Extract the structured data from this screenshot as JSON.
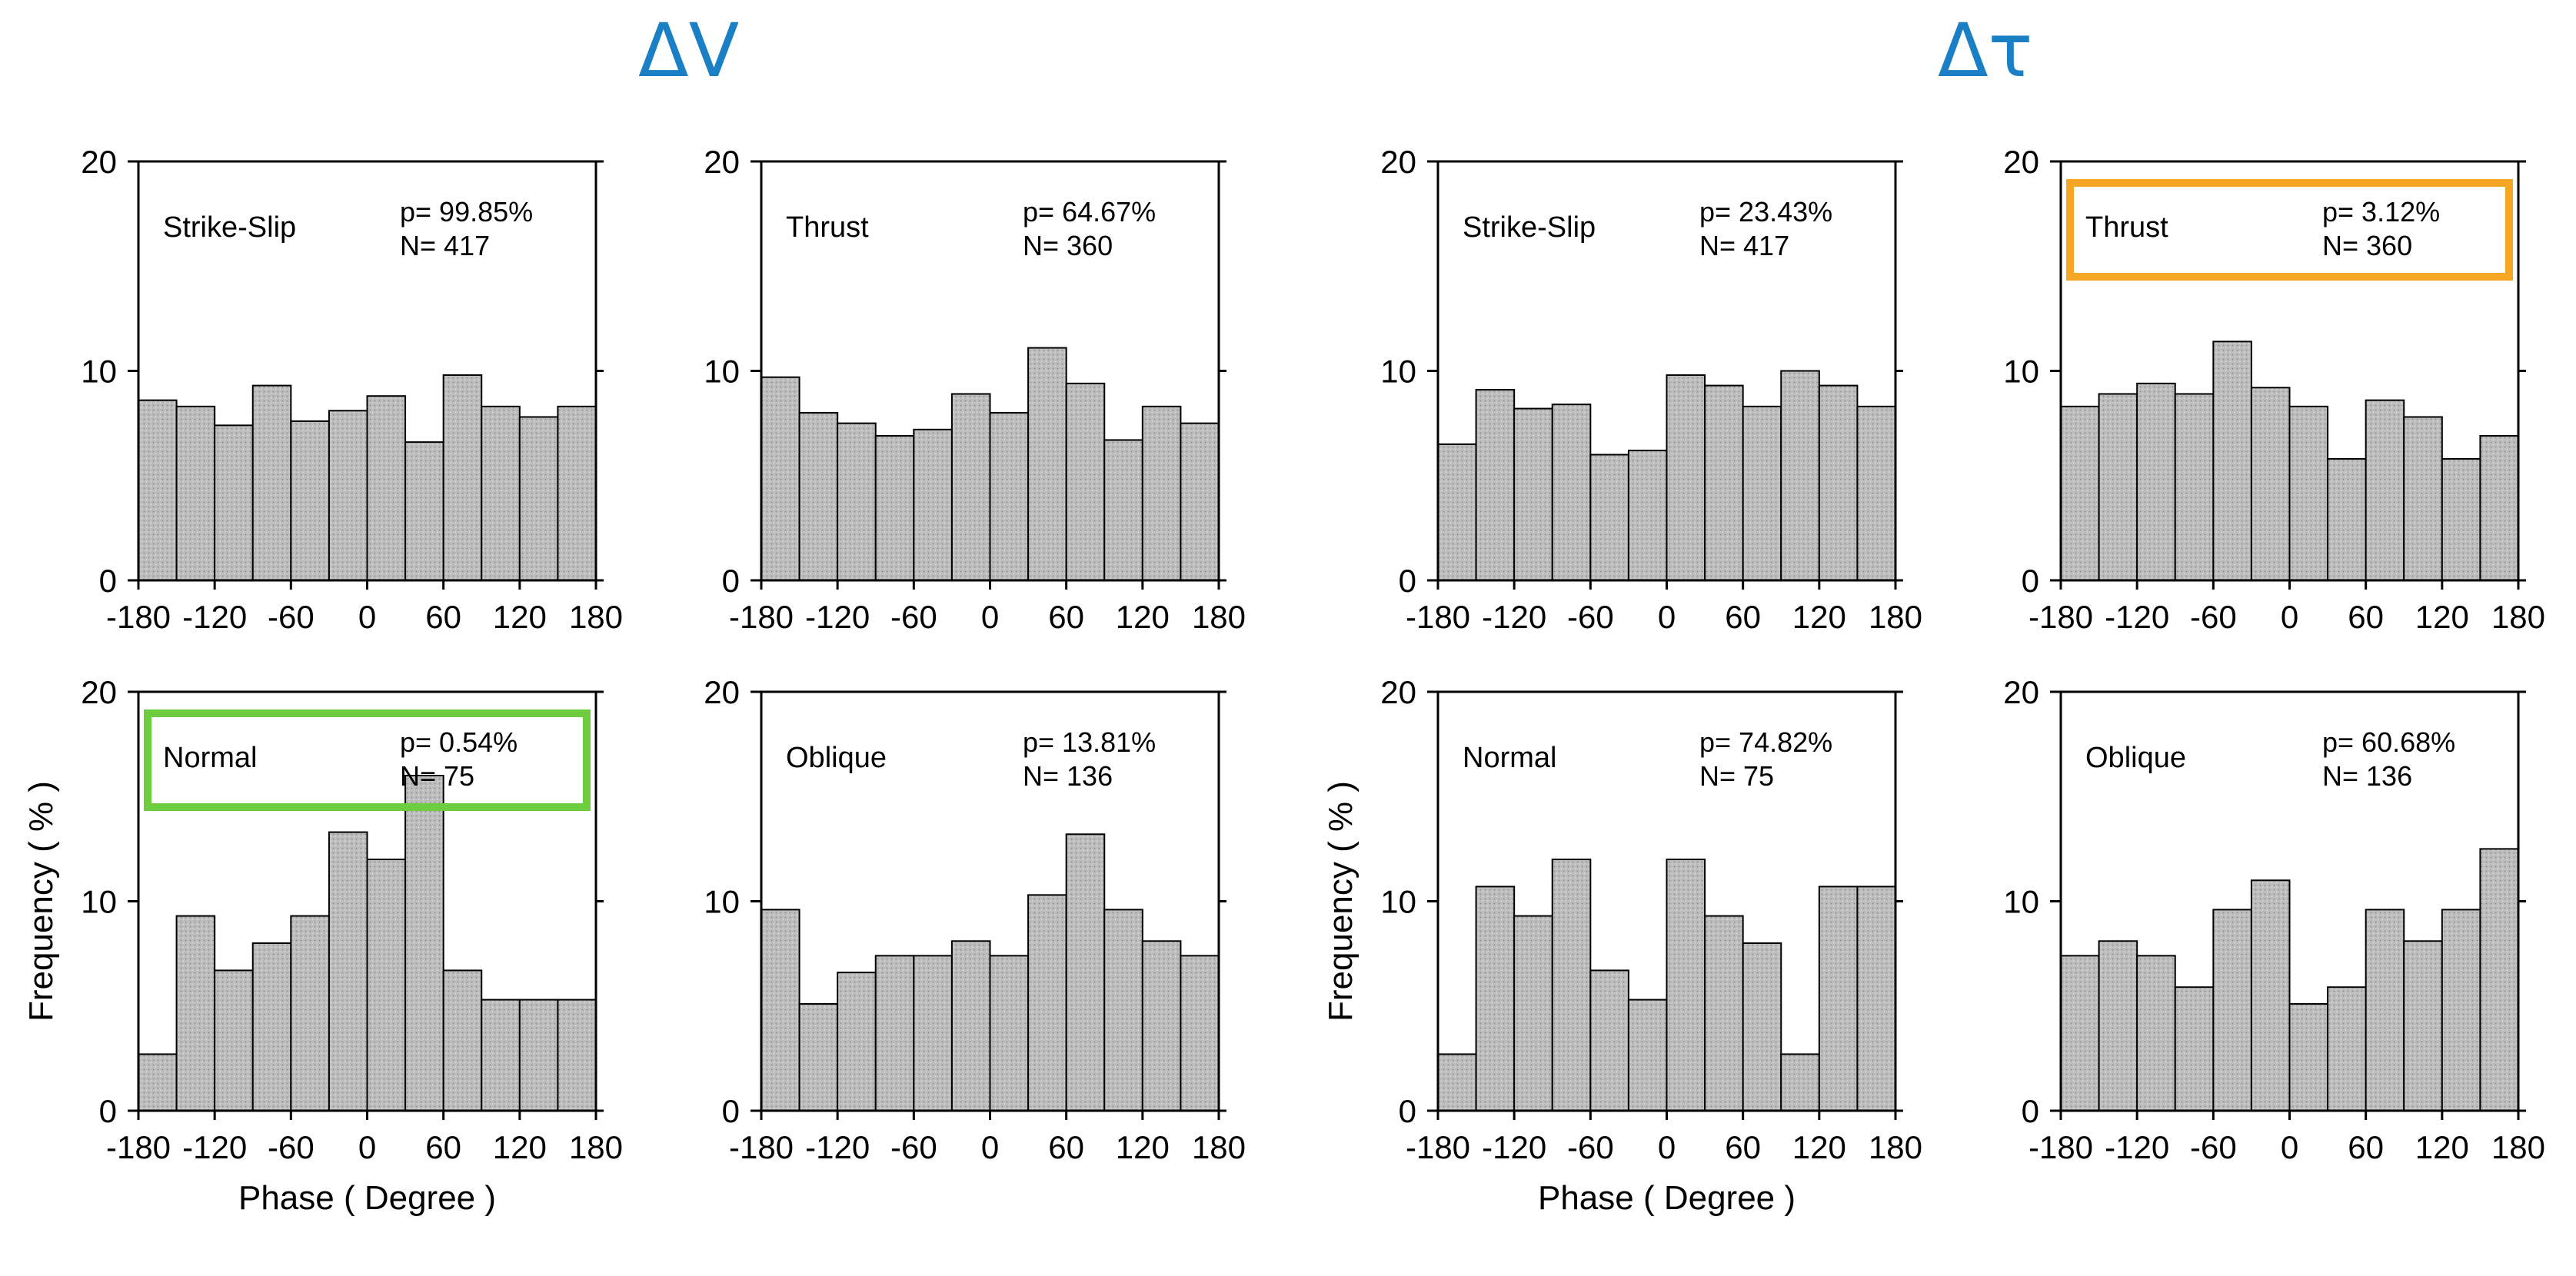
{
  "titles": {
    "left": "ΔV",
    "right": "Δτ"
  },
  "axis_labels": {
    "x": "Phase ( Degree )",
    "y": "Frequency ( % )"
  },
  "colors": {
    "title": "#1a7fc4",
    "highlight_orange": "#f5a623",
    "highlight_green": "#6dcd3f",
    "bar_fill": "#bdbdbd",
    "bar_edge": "#000000"
  },
  "chart_data": [
    {
      "type": "bar",
      "group": "ΔV",
      "label": "Strike-Slip",
      "p": "p= 99.85%",
      "n": "N= 417",
      "xticks": [
        "-180",
        "-120",
        "-60",
        "0",
        "60",
        "120",
        "180"
      ],
      "yticks": [
        "0",
        "10",
        "20"
      ],
      "xlim": [
        -180,
        180
      ],
      "ylim": [
        0,
        20
      ],
      "bin_centers": [
        -165,
        -135,
        -105,
        -75,
        -45,
        -15,
        15,
        45,
        75,
        105,
        135,
        165
      ],
      "values": [
        8.6,
        8.3,
        7.4,
        9.3,
        7.6,
        8.1,
        8.8,
        6.6,
        9.8,
        8.3,
        7.8,
        8.3
      ]
    },
    {
      "type": "bar",
      "group": "ΔV",
      "label": "Thrust",
      "p": "p= 64.67%",
      "n": "N= 360",
      "xticks": [
        "-180",
        "-120",
        "-60",
        "0",
        "60",
        "120",
        "180"
      ],
      "yticks": [
        "0",
        "10",
        "20"
      ],
      "xlim": [
        -180,
        180
      ],
      "ylim": [
        0,
        20
      ],
      "bin_centers": [
        -165,
        -135,
        -105,
        -75,
        -45,
        -15,
        15,
        45,
        75,
        105,
        135,
        165
      ],
      "values": [
        9.7,
        8.0,
        7.5,
        6.9,
        7.2,
        8.9,
        8.0,
        11.1,
        9.4,
        6.7,
        8.3,
        7.5
      ]
    },
    {
      "type": "bar",
      "group": "Δτ",
      "label": "Strike-Slip",
      "p": "p= 23.43%",
      "n": "N= 417",
      "xticks": [
        "-180",
        "-120",
        "-60",
        "0",
        "60",
        "120",
        "180"
      ],
      "yticks": [
        "0",
        "10",
        "20"
      ],
      "xlim": [
        -180,
        180
      ],
      "ylim": [
        0,
        20
      ],
      "bin_centers": [
        -165,
        -135,
        -105,
        -75,
        -45,
        -15,
        15,
        45,
        75,
        105,
        135,
        165
      ],
      "values": [
        6.5,
        9.1,
        8.2,
        8.4,
        6.0,
        6.2,
        9.8,
        9.3,
        8.3,
        10.0,
        9.3,
        8.3
      ]
    },
    {
      "type": "bar",
      "group": "Δτ",
      "label": "Thrust",
      "p": "p= 3.12%",
      "n": "N= 360",
      "highlight": "orange",
      "xticks": [
        "-180",
        "-120",
        "-60",
        "0",
        "60",
        "120",
        "180"
      ],
      "yticks": [
        "0",
        "10",
        "20"
      ],
      "xlim": [
        -180,
        180
      ],
      "ylim": [
        0,
        20
      ],
      "bin_centers": [
        -165,
        -135,
        -105,
        -75,
        -45,
        -15,
        15,
        45,
        75,
        105,
        135,
        165
      ],
      "values": [
        8.3,
        8.9,
        9.4,
        8.9,
        11.4,
        9.2,
        8.3,
        5.8,
        8.6,
        7.8,
        5.8,
        6.9
      ]
    },
    {
      "type": "bar",
      "group": "ΔV",
      "label": "Normal",
      "p": "p= 0.54%",
      "n": "N= 75",
      "highlight": "green",
      "xticks": [
        "-180",
        "-120",
        "-60",
        "0",
        "60",
        "120",
        "180"
      ],
      "yticks": [
        "0",
        "10",
        "20"
      ],
      "xlim": [
        -180,
        180
      ],
      "ylim": [
        0,
        20
      ],
      "bin_centers": [
        -165,
        -135,
        -105,
        -75,
        -45,
        -15,
        15,
        45,
        75,
        105,
        135,
        165
      ],
      "values": [
        2.7,
        9.3,
        6.7,
        8.0,
        9.3,
        13.3,
        12.0,
        16.0,
        6.7,
        5.3,
        5.3,
        5.3
      ]
    },
    {
      "type": "bar",
      "group": "ΔV",
      "label": "Oblique",
      "p": "p= 13.81%",
      "n": "N= 136",
      "xticks": [
        "-180",
        "-120",
        "-60",
        "0",
        "60",
        "120",
        "180"
      ],
      "yticks": [
        "0",
        "10",
        "20"
      ],
      "xlim": [
        -180,
        180
      ],
      "ylim": [
        0,
        20
      ],
      "bin_centers": [
        -165,
        -135,
        -105,
        -75,
        -45,
        -15,
        15,
        45,
        75,
        105,
        135,
        165
      ],
      "values": [
        9.6,
        5.1,
        6.6,
        7.4,
        7.4,
        8.1,
        7.4,
        10.3,
        13.2,
        9.6,
        8.1,
        7.4
      ]
    },
    {
      "type": "bar",
      "group": "Δτ",
      "label": "Normal",
      "p": "p= 74.82%",
      "n": "N=  75",
      "xticks": [
        "-180",
        "-120",
        "-60",
        "0",
        "60",
        "120",
        "180"
      ],
      "yticks": [
        "0",
        "10",
        "20"
      ],
      "xlim": [
        -180,
        180
      ],
      "ylim": [
        0,
        20
      ],
      "bin_centers": [
        -165,
        -135,
        -105,
        -75,
        -45,
        -15,
        15,
        45,
        75,
        105,
        135,
        165
      ],
      "values": [
        2.7,
        10.7,
        9.3,
        12.0,
        6.7,
        5.3,
        12.0,
        9.3,
        8.0,
        2.7,
        10.7,
        10.7
      ]
    },
    {
      "type": "bar",
      "group": "Δτ",
      "label": "Oblique",
      "p": "p= 60.68%",
      "n": "N= 136",
      "xticks": [
        "-180",
        "-120",
        "-60",
        "0",
        "60",
        "120",
        "180"
      ],
      "yticks": [
        "0",
        "10",
        "20"
      ],
      "xlim": [
        -180,
        180
      ],
      "ylim": [
        0,
        20
      ],
      "bin_centers": [
        -165,
        -135,
        -105,
        -75,
        -45,
        -15,
        15,
        45,
        75,
        105,
        135,
        165
      ],
      "values": [
        7.4,
        8.1,
        7.4,
        5.9,
        9.6,
        11.0,
        5.1,
        5.9,
        9.6,
        8.1,
        9.6,
        12.5
      ]
    }
  ]
}
